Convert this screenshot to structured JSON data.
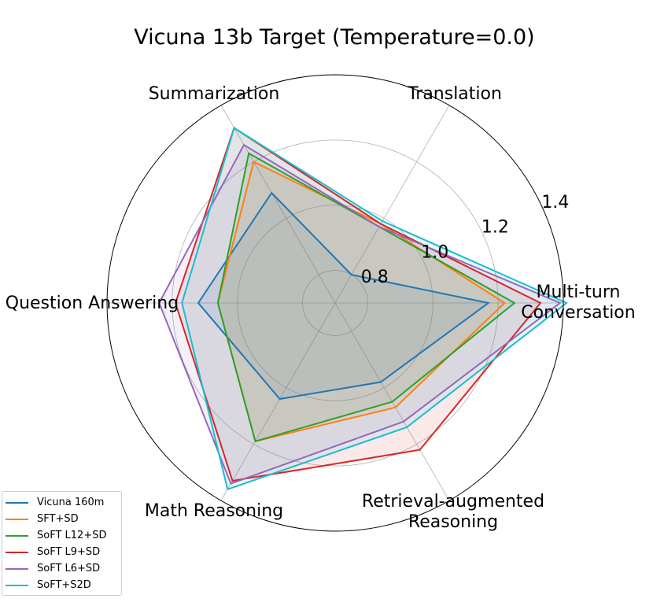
{
  "chart_data": {
    "type": "radar",
    "title": "Vicuna 13b Target (Temperature=0.0)",
    "axes": [
      "Translation",
      "Summarization",
      "Question Answering",
      "Math Reasoning",
      "Retrieval-augmented\nReasoning",
      "Multi-turn\nConversation"
    ],
    "rticks": [
      0.8,
      1.0,
      1.2,
      1.4
    ],
    "rlim": [
      0.7,
      1.4
    ],
    "grid": true,
    "legend_position": "lower-left",
    "series": [
      {
        "name": "Vicuna 160m",
        "color": "#1f77b4",
        "values": [
          0.8,
          1.09,
          1.12,
          1.04,
          0.98,
          1.17
        ]
      },
      {
        "name": "SFT+SD",
        "color": "#ff7f0e",
        "values": [
          0.98,
          1.2,
          1.06,
          1.19,
          1.07,
          1.22
        ]
      },
      {
        "name": "SoFT L12+SD",
        "color": "#2ca02c",
        "values": [
          0.97,
          1.23,
          1.06,
          1.19,
          1.05,
          1.25
        ]
      },
      {
        "name": "SoFT L9+SD",
        "color": "#d62728",
        "values": [
          0.98,
          1.32,
          1.19,
          1.33,
          1.22,
          1.33
        ]
      },
      {
        "name": "SoFT L6+SD",
        "color": "#9467bd",
        "values": [
          0.97,
          1.26,
          1.24,
          1.34,
          1.12,
          1.39
        ]
      },
      {
        "name": "SoFT+S2D",
        "color": "#17becf",
        "values": [
          0.99,
          1.32,
          1.17,
          1.36,
          1.14,
          1.41
        ]
      }
    ]
  }
}
